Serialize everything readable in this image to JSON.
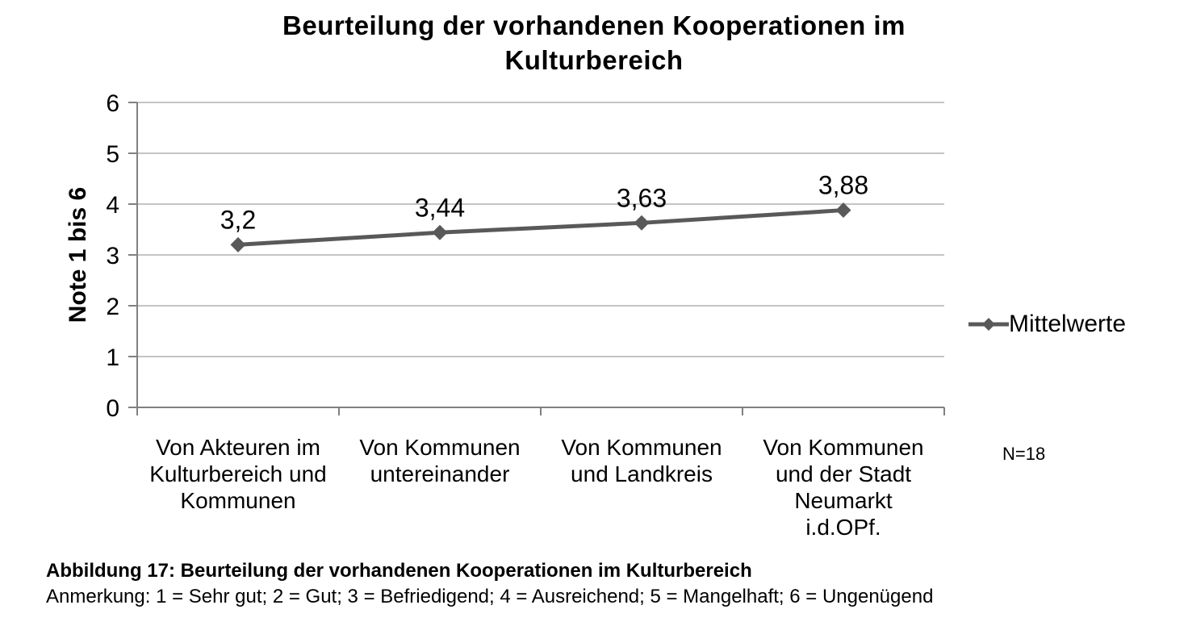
{
  "header": {
    "title_line1": "Beurteilung der vorhandenen Kooperationen im",
    "title_line2": "Kulturbereich"
  },
  "chart_data": {
    "type": "line",
    "title": "Beurteilung der vorhandenen Kooperationen im Kulturbereich",
    "categories": [
      "Von Akteuren im Kulturbereich und Kommunen",
      "Von Kommunen untereinander",
      "Von Kommunen und Landkreis",
      "Von Kommunen und der Stadt Neumarkt i.d.OPf."
    ],
    "category_lines": [
      [
        "Von Akteuren im",
        "Kulturbereich und",
        "Kommunen"
      ],
      [
        "Von Kommunen",
        "untereinander"
      ],
      [
        "Von Kommunen",
        "und Landkreis"
      ],
      [
        "Von Kommunen",
        "und der Stadt",
        "Neumarkt",
        "i.d.OPf."
      ]
    ],
    "series": [
      {
        "name": "Mittelwerte",
        "values": [
          3.2,
          3.44,
          3.63,
          3.88
        ],
        "labels": [
          "3,2",
          "3,44",
          "3,63",
          "3,88"
        ],
        "marker": "diamond"
      }
    ],
    "xlabel": "",
    "ylabel": "Note 1 bis 6",
    "ylim": [
      0,
      6
    ],
    "yticks": [
      0,
      1,
      2,
      3,
      4,
      5,
      6
    ],
    "grid": true,
    "legend_position": "right",
    "annotation": "N=18"
  },
  "caption": {
    "line1": "Abbildung 17: Beurteilung der vorhandenen Kooperationen im Kulturbereich",
    "line2": "Anmerkung: 1 = Sehr gut; 2 = Gut; 3 = Befriedigend; 4 = Ausreichend; 5 = Mangelhaft; 6 = Ungenügend"
  },
  "colors": {
    "series": "#595959",
    "grid": "#b0b0b0",
    "axis": "#808080",
    "text": "#000000"
  }
}
